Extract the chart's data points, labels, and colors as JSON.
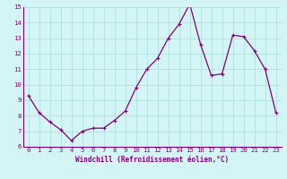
{
  "x": [
    0,
    1,
    2,
    3,
    4,
    5,
    6,
    7,
    8,
    9,
    10,
    11,
    12,
    13,
    14,
    15,
    16,
    17,
    18,
    19,
    20,
    21,
    22,
    23
  ],
  "y": [
    9.3,
    8.2,
    7.6,
    7.1,
    6.4,
    7.0,
    7.2,
    7.2,
    7.7,
    8.3,
    9.8,
    11.0,
    11.7,
    13.0,
    13.9,
    15.2,
    12.6,
    10.6,
    10.7,
    13.2,
    13.1,
    12.2,
    11.0,
    8.2
  ],
  "line_color": "#800080",
  "marker": "+",
  "marker_size": 3.5,
  "marker_lw": 0.8,
  "line_width": 0.9,
  "xlabel": "Windchill (Refroidissement éolien,°C)",
  "ylabel": "",
  "xlim": [
    -0.5,
    23.5
  ],
  "ylim": [
    6,
    15
  ],
  "yticks": [
    6,
    7,
    8,
    9,
    10,
    11,
    12,
    13,
    14,
    15
  ],
  "xticks": [
    0,
    1,
    2,
    3,
    4,
    5,
    6,
    7,
    8,
    9,
    10,
    11,
    12,
    13,
    14,
    15,
    16,
    17,
    18,
    19,
    20,
    21,
    22,
    23
  ],
  "bg_color": "#d4f5f5",
  "grid_color": "#b0e0e0",
  "tick_color": "#800080",
  "label_color": "#800080",
  "xlabel_fontsize": 5.5,
  "tick_fontsize": 5.2
}
